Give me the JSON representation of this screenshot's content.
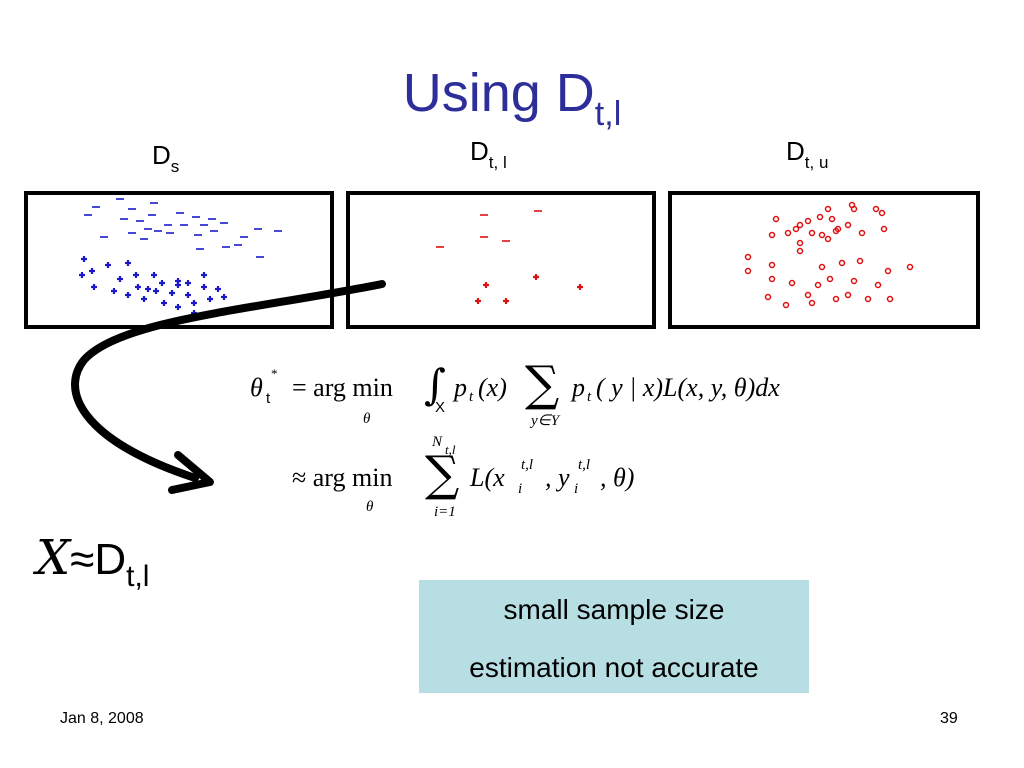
{
  "slide": {
    "title_main": "Using D",
    "title_sub": "t,l",
    "footer_date": "Jan 8, 2008",
    "page_number": "39"
  },
  "panels": {
    "source": {
      "label_main": "D",
      "label_sub": "s"
    },
    "target_labeled": {
      "label_main": "D",
      "label_sub": "t, l"
    },
    "target_unlabeled": {
      "label_main": "D",
      "label_sub": "t, u"
    }
  },
  "equation": {
    "theta": "θ",
    "theta_sub": "t",
    "star": "*",
    "eq_sign": "= arg min",
    "argmin_sub": "θ",
    "integral_domain": "X",
    "integrand_1": "p",
    "integrand_1_sub": "t",
    "integrand_1_arg": "(x)",
    "sum_sub": "y∈Y",
    "integrand_2": "p",
    "integrand_2_sub": "t",
    "integrand_2_arg": "( y | x)L(x, y, θ)dx",
    "approx_line": "≈ arg min",
    "approx_argmin_sub": "θ",
    "sum2_top": "N",
    "sum2_top_sub": "t,l",
    "sum2_bottom": "i=1",
    "loss_open": "L(x",
    "x_sup": "t,l",
    "x_sub": "i",
    "loss_mid": ", y",
    "y_sup": "t,l",
    "y_sub": "i",
    "loss_close": ", θ)"
  },
  "approximation": {
    "chi": "X",
    "approx": "≈D",
    "sub": "t,l"
  },
  "callout": {
    "line1": "small sample size",
    "line2": "estimation not accurate"
  },
  "colors": {
    "title": "#2e2e9a",
    "source_points": "#1a1acc",
    "target_points": "#e01010",
    "callout_bg": "#b7dfe3"
  }
}
